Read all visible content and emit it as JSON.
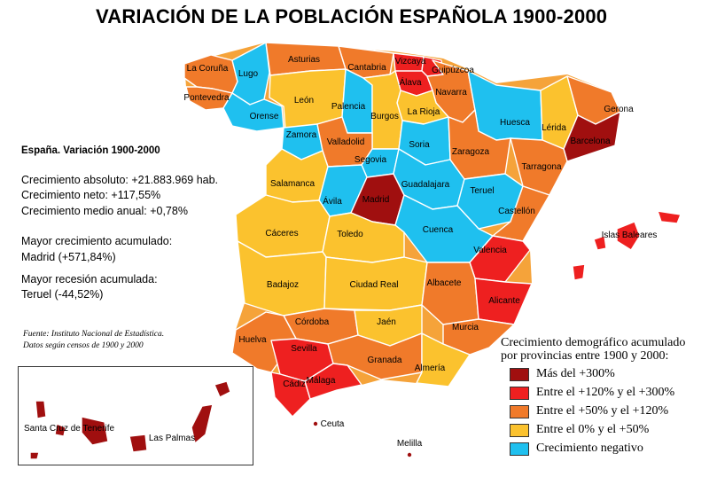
{
  "title": "VARIACIÓN DE LA POBLACIÓN ESPAÑOLA 1900-2000",
  "colors": {
    "mas_300": "#a00f0f",
    "entre_120_300": "#ee2020",
    "entre_50_120": "#f07a2a",
    "entre_0_50": "#fbc22e",
    "negativo": "#1fc0ef",
    "sea": "#ffffff",
    "border": "#ffffff"
  },
  "stats": {
    "heading": "España. Variación 1900-2000",
    "crecimiento_absoluto": "Crecimiento absoluto: +21.883.969 hab.",
    "crecimiento_neto": "Crecimiento neto: +117,55%",
    "crecimiento_medio": "Crecimiento medio anual: +0,78%",
    "mayor_crecimiento_label": "Mayor crecimiento acumulado:",
    "mayor_crecimiento_value": "Madrid (+571,84%)",
    "mayor_recesion_label": "Mayor recesión acumulada:",
    "mayor_recesion_value": "Teruel (-44,52%)"
  },
  "source": {
    "line1": "Fuente: Instituto Nacional de Estadística.",
    "line2": "Datos según censos de 1900 y 2000"
  },
  "legend": {
    "title_line1": "Crecimiento demográfico acumulado",
    "title_line2": "por provincias entre 1900 y 2000:",
    "items": [
      {
        "label": "Más del +300%",
        "category": "mas_300"
      },
      {
        "label": "Entre el +120% y el +300%",
        "category": "entre_120_300"
      },
      {
        "label": "Entre el +50% y el +120%",
        "category": "entre_50_120"
      },
      {
        "label": "Entre el 0% y el +50%",
        "category": "entre_0_50"
      },
      {
        "label": "Crecimiento negativo",
        "category": "negativo"
      }
    ]
  },
  "provinces": [
    {
      "name": "La Coruña",
      "category": "entre_50_120"
    },
    {
      "name": "Lugo",
      "category": "negativo"
    },
    {
      "name": "Pontevedra",
      "category": "entre_50_120"
    },
    {
      "name": "Orense",
      "category": "negativo"
    },
    {
      "name": "Asturias",
      "category": "entre_50_120"
    },
    {
      "name": "Cantabria",
      "category": "entre_50_120"
    },
    {
      "name": "Vizcaya",
      "category": "entre_120_300"
    },
    {
      "name": "Guipúzcoa",
      "category": "entre_120_300"
    },
    {
      "name": "Álava",
      "category": "entre_120_300"
    },
    {
      "name": "Navarra",
      "category": "entre_50_120"
    },
    {
      "name": "La Rioja",
      "category": "entre_0_50"
    },
    {
      "name": "León",
      "category": "entre_0_50"
    },
    {
      "name": "Palencia",
      "category": "negativo"
    },
    {
      "name": "Burgos",
      "category": "entre_0_50"
    },
    {
      "name": "Zamora",
      "category": "negativo"
    },
    {
      "name": "Valladolid",
      "category": "entre_50_120"
    },
    {
      "name": "Soria",
      "category": "negativo"
    },
    {
      "name": "Segovia",
      "category": "negativo"
    },
    {
      "name": "Salamanca",
      "category": "entre_0_50"
    },
    {
      "name": "Ávila",
      "category": "negativo"
    },
    {
      "name": "Madrid",
      "category": "mas_300"
    },
    {
      "name": "Guadalajara",
      "category": "negativo"
    },
    {
      "name": "Huesca",
      "category": "negativo"
    },
    {
      "name": "Lérida",
      "category": "entre_0_50"
    },
    {
      "name": "Gerona",
      "category": "entre_50_120"
    },
    {
      "name": "Barcelona",
      "category": "mas_300"
    },
    {
      "name": "Zaragoza",
      "category": "entre_50_120"
    },
    {
      "name": "Tarragona",
      "category": "entre_50_120"
    },
    {
      "name": "Teruel",
      "category": "negativo"
    },
    {
      "name": "Castellón",
      "category": "entre_50_120"
    },
    {
      "name": "Cuenca",
      "category": "negativo"
    },
    {
      "name": "Valencia",
      "category": "entre_120_300"
    },
    {
      "name": "Cáceres",
      "category": "entre_0_50"
    },
    {
      "name": "Toledo",
      "category": "entre_0_50"
    },
    {
      "name": "Badajoz",
      "category": "entre_0_50"
    },
    {
      "name": "Ciudad Real",
      "category": "entre_0_50"
    },
    {
      "name": "Albacete",
      "category": "entre_50_120"
    },
    {
      "name": "Alicante",
      "category": "entre_120_300"
    },
    {
      "name": "Murcia",
      "category": "entre_50_120"
    },
    {
      "name": "Córdoba",
      "category": "entre_50_120"
    },
    {
      "name": "Jaén",
      "category": "entre_0_50"
    },
    {
      "name": "Huelva",
      "category": "entre_50_120"
    },
    {
      "name": "Sevilla",
      "category": "entre_120_300"
    },
    {
      "name": "Granada",
      "category": "entre_50_120"
    },
    {
      "name": "Almería",
      "category": "entre_0_50"
    },
    {
      "name": "Cádiz",
      "category": "entre_120_300"
    },
    {
      "name": "Málaga",
      "category": "entre_120_300"
    },
    {
      "name": "Islas Baleares",
      "category": "entre_120_300"
    },
    {
      "name": "Santa Cruz de Tenerife",
      "category": "mas_300"
    },
    {
      "name": "Las Palmas",
      "category": "mas_300"
    }
  ],
  "cities": [
    {
      "name": "Ceuta"
    },
    {
      "name": "Melilla"
    }
  ]
}
